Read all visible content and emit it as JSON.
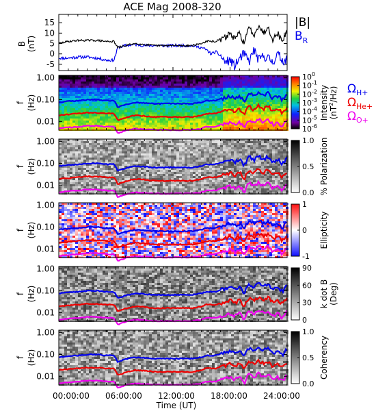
{
  "chart_data": {
    "title": "ACE Mag 2008-320",
    "type": "multi-panel",
    "time_axis": {
      "xlabel": "Time (UT)",
      "ticks": [
        "00:00:00",
        "06:00:00",
        "12:00:00",
        "18:00:00",
        "24:00:00"
      ],
      "range_hours": [
        0,
        24
      ]
    },
    "freq_axis": {
      "label_top": "f",
      "label_bottom": "(Hz)",
      "scale": "log",
      "range_hz": [
        0.004,
        1.3
      ],
      "ticks": [
        "1.00",
        "0.10",
        "0.01"
      ]
    },
    "line_panel": {
      "ylabel": "B",
      "yunit": "(nT)",
      "ylim": [
        -8,
        19
      ],
      "yticks": [
        "15",
        "10",
        "5",
        "0",
        "-5"
      ],
      "legend_B": "|B|",
      "legend_BR": "B",
      "legend_BR_sub": "R",
      "series_B": {
        "name": "|B|",
        "color": "#000000",
        "hours": [
          0,
          1,
          2,
          3,
          4,
          5,
          5.8,
          6.2,
          7,
          8,
          9,
          10,
          11,
          12,
          13,
          14,
          15,
          15.5,
          16,
          16.5,
          17,
          17.5,
          18,
          18.5,
          19,
          19.5,
          20,
          20.5,
          21,
          21.5,
          22,
          22.5,
          23,
          23.5,
          24
        ],
        "values": [
          5,
          6,
          6.5,
          6.5,
          6.5,
          6,
          6,
          3,
          4,
          5,
          4.5,
          4,
          4,
          4,
          4,
          4,
          5,
          6,
          6,
          6,
          7,
          8,
          10,
          7,
          10,
          5,
          13,
          9,
          14,
          10,
          13,
          7,
          10,
          6,
          11
        ]
      },
      "series_BR": {
        "name": "B_R",
        "color": "#0000ee",
        "hours": [
          0,
          1,
          2,
          3,
          4,
          5,
          5.8,
          6.2,
          7,
          8,
          9,
          10,
          11,
          12,
          13,
          14,
          15,
          15.5,
          16,
          16.5,
          17,
          17.5,
          18,
          18.5,
          19,
          19.5,
          20,
          20.5,
          21,
          21.5,
          22,
          22.5,
          23,
          23.5,
          24
        ],
        "values": [
          -2,
          -2,
          -1.5,
          -1.5,
          -2,
          -3,
          -3,
          3,
          4,
          4.5,
          4,
          4,
          4,
          4,
          4,
          4,
          3,
          2,
          0,
          1,
          -1,
          -4,
          -3,
          -6,
          -2,
          0,
          -4,
          2,
          -3,
          -1,
          -2,
          -4,
          0,
          -3,
          -3
        ]
      }
    },
    "spectrogram_panels": [
      {
        "id": "intensity",
        "colorbar_label": "Intensity",
        "colorbar_unit_base": "(nT",
        "colorbar_unit_sup": "2",
        "colorbar_unit_tail": "/Hz)",
        "colorbar_ticks": [
          "10",
          "10",
          "10",
          "10",
          "10",
          "10",
          "10"
        ],
        "colorbar_tick_exponents": [
          "0",
          "-1",
          "-2",
          "-3",
          "-4",
          "-5",
          "-6"
        ],
        "colormap": "rainbow"
      },
      {
        "id": "polarization",
        "colorbar_label": "% Polarization",
        "colorbar_ticks": [
          "1.0",
          "0.5",
          "0.0"
        ],
        "colormap": "gray"
      },
      {
        "id": "ellipticity",
        "colorbar_label": "Ellipticity",
        "colorbar_ticks": [
          "1",
          "0",
          "-1"
        ],
        "colormap": "bwr"
      },
      {
        "id": "kdotb",
        "colorbar_label": "k dot B",
        "colorbar_unit": "(Deg)",
        "colorbar_ticks": [
          "90",
          "60",
          "30",
          "0"
        ],
        "colormap": "gray"
      },
      {
        "id": "coherency",
        "colorbar_label": "Coherency",
        "colorbar_ticks": [
          "1.0",
          "0.5",
          "0.0"
        ],
        "colormap": "gray"
      }
    ],
    "gyro_lines": {
      "legend": [
        {
          "symbol": "Ω",
          "sub": "H+",
          "color": "#0000ee"
        },
        {
          "symbol": "Ω",
          "sub": "He+",
          "color": "#ee0000"
        },
        {
          "symbol": "Ω",
          "sub": "O+",
          "color": "#ee00ee"
        }
      ],
      "hours": [
        0,
        1,
        2,
        3,
        4,
        5,
        5.8,
        6.2,
        7,
        8,
        9,
        10,
        11,
        12,
        13,
        14,
        15,
        15.5,
        16,
        16.5,
        17,
        17.5,
        18,
        18.5,
        19,
        19.5,
        20,
        20.5,
        21,
        21.5,
        22,
        22.5,
        23,
        23.5,
        24
      ],
      "H_plus_hz": [
        0.075,
        0.085,
        0.09,
        0.1,
        0.1,
        0.09,
        0.09,
        0.045,
        0.06,
        0.075,
        0.07,
        0.065,
        0.065,
        0.065,
        0.065,
        0.065,
        0.075,
        0.09,
        0.09,
        0.09,
        0.11,
        0.12,
        0.15,
        0.11,
        0.15,
        0.075,
        0.2,
        0.14,
        0.21,
        0.15,
        0.2,
        0.11,
        0.15,
        0.09,
        0.17
      ],
      "He_plus_hz": [
        0.019,
        0.021,
        0.023,
        0.025,
        0.025,
        0.023,
        0.023,
        0.011,
        0.015,
        0.019,
        0.018,
        0.016,
        0.016,
        0.016,
        0.016,
        0.016,
        0.019,
        0.023,
        0.023,
        0.023,
        0.027,
        0.03,
        0.038,
        0.027,
        0.038,
        0.019,
        0.05,
        0.034,
        0.053,
        0.038,
        0.05,
        0.027,
        0.038,
        0.023,
        0.042
      ],
      "O_plus_hz": [
        0.0047,
        0.0053,
        0.0057,
        0.0063,
        0.0063,
        0.0057,
        0.0057,
        0.0028,
        0.0038,
        0.0047,
        0.0044,
        0.0041,
        0.0041,
        0.0041,
        0.0041,
        0.0041,
        0.0047,
        0.0057,
        0.0057,
        0.0057,
        0.0069,
        0.0075,
        0.0094,
        0.0069,
        0.0094,
        0.0047,
        0.0125,
        0.0088,
        0.0132,
        0.0094,
        0.0125,
        0.0069,
        0.0094,
        0.0057,
        0.0106
      ]
    },
    "grid": false
  }
}
